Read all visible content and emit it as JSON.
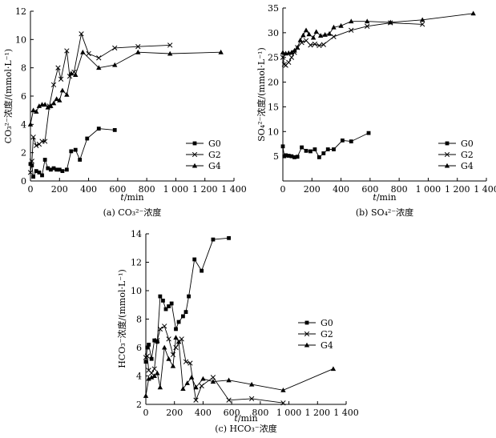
{
  "chart_data": [
    {
      "type": "line",
      "caption": "(a) CO₃²⁻浓度",
      "xlabel_var": "t",
      "xlabel_unit": "/min",
      "ylabel": "CO₃²⁻浓度/(mmol·L⁻¹)",
      "xlim": [
        0,
        1400
      ],
      "ylim": [
        0,
        12
      ],
      "xticks": [
        0,
        200,
        400,
        600,
        800,
        1000,
        1200,
        1400
      ],
      "xtick_labels": [
        "0",
        "200",
        "400",
        "600",
        "800",
        "1 000",
        "1 200",
        "1 400"
      ],
      "yticks": [
        0,
        2,
        4,
        6,
        8,
        10,
        12
      ],
      "ytick_labels": [
        "0",
        "2",
        "4",
        "6",
        "8",
        "10",
        "12"
      ],
      "legend": "bottom-right",
      "series": [
        {
          "name": "G0",
          "marker": "square",
          "x": [
            0,
            10,
            20,
            40,
            60,
            80,
            100,
            120,
            140,
            160,
            180,
            200,
            220,
            250,
            280,
            310,
            340,
            390,
            470,
            580
          ],
          "y": [
            1.2,
            1.1,
            0.3,
            0.7,
            0.6,
            0.4,
            1.5,
            0.9,
            0.8,
            0.9,
            0.8,
            0.8,
            0.7,
            0.8,
            2.1,
            2.2,
            1.5,
            3.0,
            3.7,
            3.6
          ]
        },
        {
          "name": "G2",
          "marker": "x",
          "x": [
            0,
            10,
            20,
            40,
            60,
            80,
            100,
            130,
            160,
            190,
            210,
            250,
            270,
            300,
            350,
            400,
            470,
            580,
            740,
            960
          ],
          "y": [
            0.6,
            1.4,
            3.1,
            2.5,
            2.6,
            2.8,
            2.8,
            5.3,
            6.8,
            8.0,
            7.2,
            9.2,
            7.4,
            7.7,
            10.4,
            9.0,
            8.7,
            9.4,
            9.5,
            9.6
          ]
        },
        {
          "name": "G4",
          "marker": "triangle",
          "x": [
            0,
            20,
            40,
            60,
            80,
            100,
            120,
            140,
            160,
            180,
            200,
            220,
            250,
            280,
            310,
            360,
            470,
            580,
            740,
            960,
            1310
          ],
          "y": [
            4.0,
            5.0,
            4.9,
            5.3,
            5.4,
            5.4,
            5.2,
            5.3,
            5.5,
            5.8,
            5.7,
            6.4,
            6.1,
            7.6,
            7.5,
            9.1,
            8.0,
            8.2,
            9.1,
            9.0,
            9.1
          ]
        }
      ]
    },
    {
      "type": "line",
      "caption": "(b) SO₄²⁻浓度",
      "xlabel_var": "t",
      "xlabel_unit": "/min",
      "ylabel": "SO₄²⁻浓度/(mmol·L⁻¹)",
      "xlim": [
        0,
        1400
      ],
      "ylim": [
        0,
        35
      ],
      "xticks": [
        0,
        200,
        400,
        600,
        800,
        1000,
        1200,
        1400
      ],
      "xtick_labels": [
        "0",
        "200",
        "400",
        "600",
        "800",
        "1 000",
        "1 200",
        "1 400"
      ],
      "yticks": [
        5,
        10,
        15,
        20,
        25,
        30,
        35
      ],
      "ytick_labels": [
        "5",
        "10",
        "15",
        "20",
        "25",
        "30",
        "35"
      ],
      "legend": "bottom-right",
      "series": [
        {
          "name": "G0",
          "marker": "square",
          "x": [
            0,
            10,
            20,
            40,
            60,
            80,
            100,
            130,
            160,
            190,
            220,
            250,
            280,
            310,
            350,
            410,
            470,
            590
          ],
          "y": [
            7.0,
            5.0,
            5.2,
            5.1,
            5.0,
            4.8,
            4.9,
            6.8,
            6.1,
            6.0,
            6.4,
            4.8,
            5.6,
            6.4,
            6.4,
            8.2,
            8.0,
            9.7
          ]
        },
        {
          "name": "G2",
          "marker": "x",
          "x": [
            0,
            10,
            20,
            40,
            60,
            80,
            100,
            130,
            160,
            190,
            220,
            250,
            280,
            350,
            470,
            580,
            740,
            960
          ],
          "y": [
            25.0,
            23.6,
            23.4,
            24.0,
            25.0,
            26.0,
            27.0,
            28.0,
            28.4,
            27.5,
            27.7,
            27.4,
            27.6,
            29.2,
            30.5,
            31.3,
            32.0,
            31.7
          ]
        },
        {
          "name": "G4",
          "marker": "triangle",
          "x": [
            0,
            20,
            40,
            60,
            80,
            100,
            120,
            140,
            160,
            180,
            210,
            230,
            260,
            290,
            320,
            350,
            400,
            470,
            580,
            740,
            960,
            1310
          ],
          "y": [
            26.0,
            25.8,
            25.9,
            26.0,
            26.4,
            27.0,
            28.5,
            29.5,
            30.5,
            29.7,
            29.0,
            30.2,
            29.4,
            29.6,
            29.8,
            31.1,
            31.4,
            32.3,
            32.3,
            32.1,
            32.6,
            33.9
          ]
        }
      ]
    },
    {
      "type": "line",
      "caption": "(c) HCO₃⁻浓度",
      "xlabel_var": "t",
      "xlabel_unit": "/min",
      "ylabel": "HCO₃⁻浓度/(mmol·L⁻¹)",
      "xlim": [
        0,
        1400
      ],
      "ylim": [
        2,
        14
      ],
      "xticks": [
        0,
        200,
        400,
        600,
        800,
        1000,
        1200,
        1400
      ],
      "xtick_labels": [
        "0",
        "200",
        "400",
        "600",
        "800",
        "1 000",
        "1 200",
        "1 400"
      ],
      "yticks": [
        2,
        4,
        6,
        8,
        10,
        12,
        14
      ],
      "ytick_labels": [
        "2",
        "4",
        "6",
        "8",
        "10",
        "12",
        "14"
      ],
      "legend": "bottom-right",
      "series": [
        {
          "name": "G0",
          "marker": "square",
          "x": [
            0,
            10,
            20,
            40,
            60,
            80,
            100,
            120,
            140,
            160,
            180,
            210,
            230,
            260,
            280,
            300,
            340,
            390,
            470,
            580
          ],
          "y": [
            5.0,
            6.0,
            6.2,
            5.2,
            6.5,
            6.4,
            9.6,
            9.3,
            8.7,
            8.9,
            9.1,
            7.3,
            7.8,
            8.2,
            8.5,
            9.6,
            12.2,
            11.4,
            13.6,
            13.7
          ]
        },
        {
          "name": "G2",
          "marker": "x",
          "x": [
            0,
            10,
            20,
            40,
            60,
            80,
            100,
            130,
            160,
            190,
            210,
            250,
            280,
            310,
            350,
            390,
            470,
            580,
            740,
            960
          ],
          "y": [
            5.3,
            5.4,
            4.4,
            4.2,
            4.5,
            6.5,
            7.3,
            7.5,
            6.6,
            5.5,
            6.0,
            6.6,
            5.0,
            4.9,
            2.3,
            3.3,
            3.9,
            2.3,
            2.4,
            2.1
          ]
        },
        {
          "name": "G4",
          "marker": "triangle",
          "x": [
            0,
            20,
            40,
            60,
            80,
            100,
            130,
            160,
            190,
            210,
            230,
            260,
            290,
            320,
            350,
            400,
            470,
            580,
            740,
            960,
            1310
          ],
          "y": [
            2.6,
            3.8,
            3.9,
            4.0,
            4.2,
            3.2,
            6.0,
            5.2,
            4.7,
            6.7,
            6.4,
            3.1,
            3.5,
            3.9,
            3.2,
            3.8,
            3.6,
            3.7,
            3.4,
            3.0,
            4.5
          ]
        }
      ]
    }
  ]
}
